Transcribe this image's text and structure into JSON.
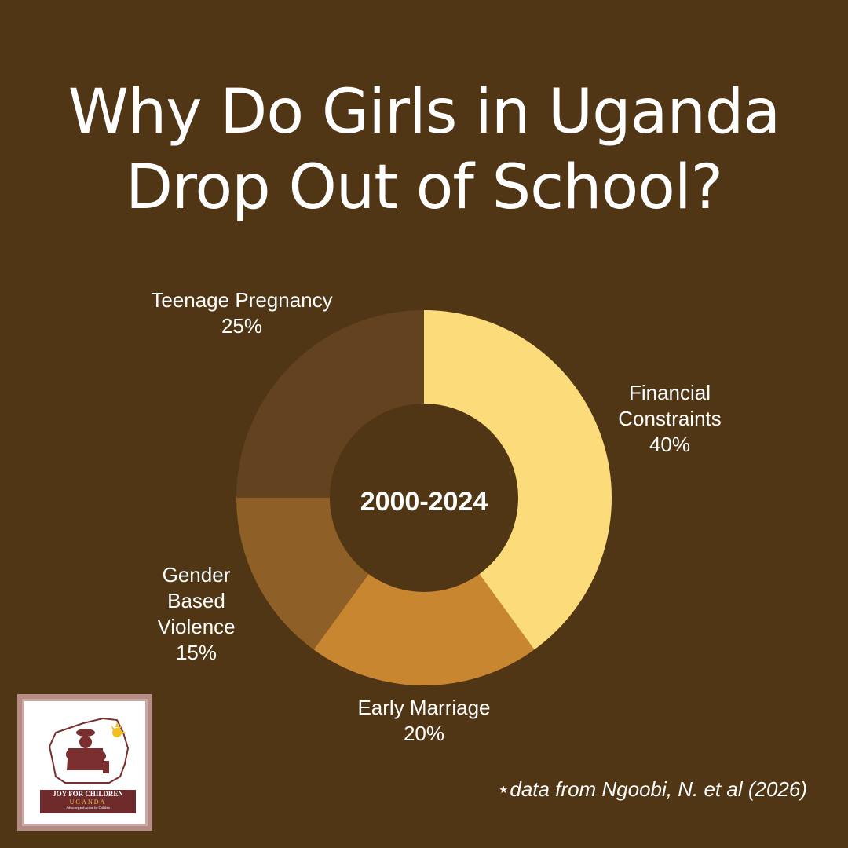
{
  "title": {
    "line1": "Why Do Girls in Uganda",
    "line2": "Drop Out of School?"
  },
  "center_label": "2000-2024",
  "source_note": "⋆data from Ngoobi, N. et al (2026)",
  "logo": {
    "line1": "JOY FOR CHILDREN",
    "line2": "UGANDA",
    "line3": "Advocacy and Action for Children"
  },
  "chart_data": {
    "type": "pie",
    "style": "donut",
    "slices": [
      {
        "label": "Financial Constraints",
        "value": 40,
        "value_label": "40%",
        "color": "#fcdb7a"
      },
      {
        "label": "Early Marriage",
        "value": 20,
        "value_label": "20%",
        "color": "#c98630"
      },
      {
        "label": "Gender Based Violence",
        "value": 15,
        "value_label": "15%",
        "color": "#8e5f26"
      },
      {
        "label": "Teenage Pregnancy",
        "value": 25,
        "value_label": "25%",
        "color": "#634220"
      }
    ],
    "start_angle": "top",
    "direction": "clockwise"
  },
  "labels": {
    "teen": [
      "Teenage Pregnancy",
      "25%"
    ],
    "fin": [
      "Financial",
      "Constraints",
      "40%"
    ],
    "gbv": [
      "Gender",
      "Based",
      "Violence",
      "15%"
    ],
    "early": [
      "Early Marriage",
      "20%"
    ]
  },
  "colors": {
    "background": "#513616",
    "text": "#ffffff"
  }
}
